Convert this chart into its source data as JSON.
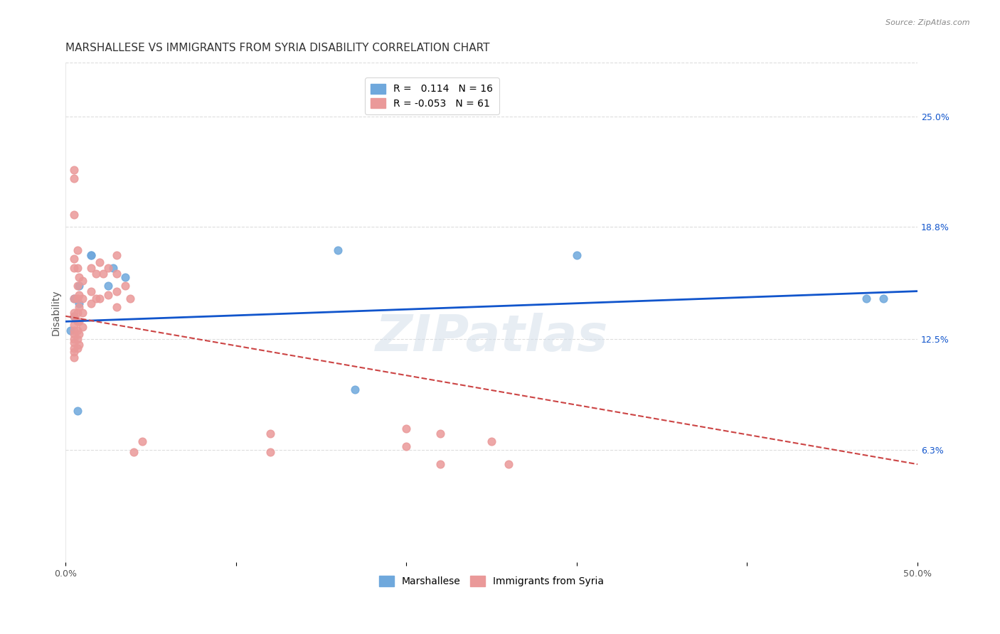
{
  "title": "MARSHALLESE VS IMMIGRANTS FROM SYRIA DISABILITY CORRELATION CHART",
  "source": "Source: ZipAtlas.com",
  "xlabel": "",
  "ylabel": "Disability",
  "xlim": [
    0.0,
    0.5
  ],
  "ylim": [
    0.0,
    0.28
  ],
  "xticks": [
    0.0,
    0.1,
    0.2,
    0.3,
    0.4,
    0.5
  ],
  "xticklabels": [
    "0.0%",
    "",
    "",
    "",
    "",
    "50.0%"
  ],
  "ytick_right_labels": [
    "25.0%",
    "18.8%",
    "12.5%",
    "6.3%"
  ],
  "ytick_right_values": [
    0.25,
    0.188,
    0.125,
    0.063
  ],
  "watermark": "ZIPatlas",
  "legend_r1": "R =   0.114   N = 16",
  "legend_r2": "R = -0.053   N = 61",
  "blue_r": 0.114,
  "blue_n": 16,
  "pink_r": -0.053,
  "pink_n": 61,
  "marshallese_color": "#6fa8dc",
  "syria_color": "#ea9999",
  "blue_line_color": "#1155cc",
  "pink_line_color": "#cc4444",
  "marshallese_x": [
    0.003,
    0.005,
    0.005,
    0.008,
    0.008,
    0.025,
    0.028,
    0.015,
    0.015,
    0.035,
    0.17,
    0.16,
    0.3,
    0.48,
    0.47,
    0.007
  ],
  "marshallese_y": [
    0.13,
    0.148,
    0.138,
    0.155,
    0.145,
    0.155,
    0.165,
    0.172,
    0.172,
    0.16,
    0.097,
    0.175,
    0.172,
    0.148,
    0.148,
    0.085
  ],
  "syria_x": [
    0.005,
    0.005,
    0.005,
    0.005,
    0.005,
    0.005,
    0.005,
    0.005,
    0.005,
    0.005,
    0.005,
    0.005,
    0.005,
    0.005,
    0.005,
    0.005,
    0.007,
    0.007,
    0.007,
    0.007,
    0.007,
    0.007,
    0.007,
    0.007,
    0.007,
    0.008,
    0.008,
    0.008,
    0.008,
    0.008,
    0.008,
    0.01,
    0.01,
    0.01,
    0.01,
    0.015,
    0.015,
    0.015,
    0.018,
    0.018,
    0.02,
    0.02,
    0.022,
    0.025,
    0.025,
    0.03,
    0.03,
    0.03,
    0.03,
    0.035,
    0.038,
    0.04,
    0.045,
    0.12,
    0.12,
    0.2,
    0.2,
    0.22,
    0.22,
    0.25,
    0.26
  ],
  "syria_y": [
    0.22,
    0.215,
    0.195,
    0.17,
    0.165,
    0.148,
    0.14,
    0.138,
    0.133,
    0.13,
    0.128,
    0.125,
    0.123,
    0.12,
    0.118,
    0.115,
    0.175,
    0.165,
    0.155,
    0.148,
    0.14,
    0.135,
    0.13,
    0.125,
    0.12,
    0.16,
    0.15,
    0.143,
    0.135,
    0.128,
    0.122,
    0.158,
    0.148,
    0.14,
    0.132,
    0.165,
    0.152,
    0.145,
    0.162,
    0.148,
    0.168,
    0.148,
    0.162,
    0.165,
    0.15,
    0.172,
    0.162,
    0.152,
    0.143,
    0.155,
    0.148,
    0.062,
    0.068,
    0.062,
    0.072,
    0.075,
    0.065,
    0.072,
    0.055,
    0.068,
    0.055
  ],
  "blue_line_x0": 0.0,
  "blue_line_x1": 0.5,
  "blue_line_y0": 0.135,
  "blue_line_y1": 0.152,
  "pink_line_x0": 0.0,
  "pink_line_x1": 0.5,
  "pink_line_y0": 0.138,
  "pink_line_y1": 0.055,
  "background_color": "#ffffff",
  "grid_color": "#dddddd",
  "title_fontsize": 11,
  "axis_label_fontsize": 10,
  "tick_fontsize": 9,
  "legend_fontsize": 10
}
